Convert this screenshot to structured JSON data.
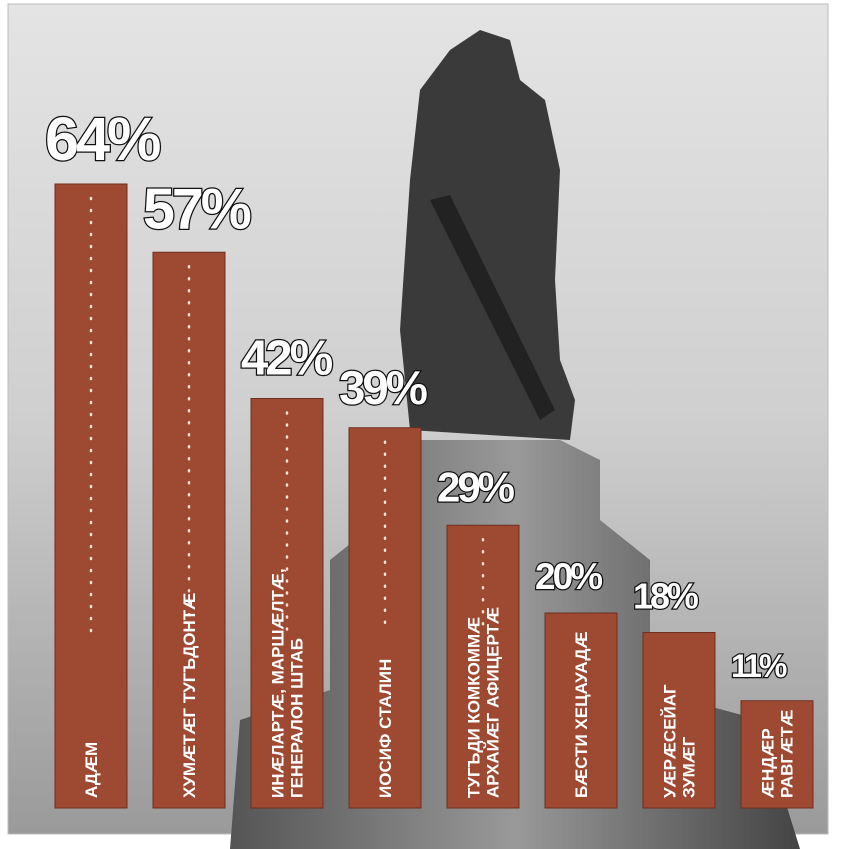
{
  "chart_data": {
    "type": "bar",
    "categories": [
      [
        "АДÆМ"
      ],
      [
        "ХУМÆТÆГ ТУГЪДОНТÆ"
      ],
      [
        "ИНÆЛАРТÆ, МАРШÆЛТÆ,",
        "ГЕНЕРАЛОН ШТАБ"
      ],
      [
        "ИОСИФ СТАЛИН"
      ],
      [
        "ТУГЪДИ КОМКОММÆ",
        "АРХАЙÆГ АФИЦЕРТÆ"
      ],
      [
        "БÆСТИ ХЕЦАУАДÆ"
      ],
      [
        "УÆРÆСЕЙАГ",
        "ЗУМÆГ"
      ],
      [
        "ÆНДÆР",
        "РАВГÆТÆ"
      ]
    ],
    "values": [
      64,
      57,
      42,
      39,
      29,
      20,
      18,
      11
    ],
    "value_labels": [
      "64%",
      "57%",
      "42%",
      "39%",
      "29%",
      "20%",
      "18%",
      "11%"
    ],
    "color": "#9e4a32"
  }
}
